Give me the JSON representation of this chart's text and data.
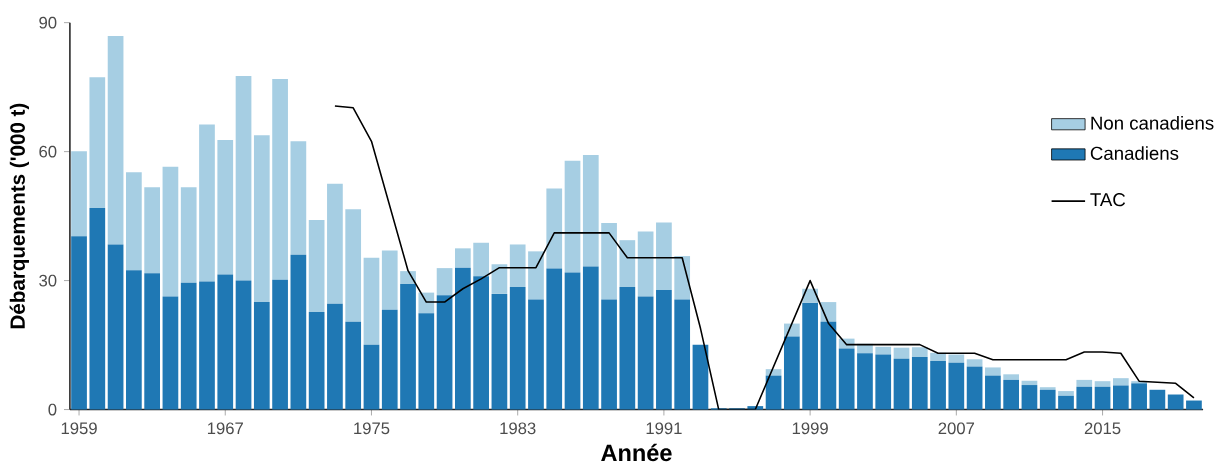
{
  "chart_data": {
    "type": "bar",
    "stacked": true,
    "xlabel": "Année",
    "ylabel": "Débarquements ('000 t)",
    "x": [
      1959,
      1960,
      1961,
      1962,
      1963,
      1964,
      1965,
      1966,
      1967,
      1968,
      1969,
      1970,
      1971,
      1972,
      1973,
      1974,
      1975,
      1976,
      1977,
      1978,
      1979,
      1980,
      1981,
      1982,
      1983,
      1984,
      1985,
      1986,
      1987,
      1988,
      1989,
      1990,
      1991,
      1992,
      1993,
      1994,
      1995,
      1996,
      1997,
      1998,
      1999,
      2000,
      2001,
      2002,
      2003,
      2004,
      2005,
      2006,
      2007,
      2008,
      2009,
      2010,
      2011,
      2012,
      2013,
      2014,
      2015,
      2016,
      2017,
      2018,
      2019,
      2020
    ],
    "series": [
      {
        "name": "Canadiens",
        "color": "#1f78b4",
        "values": [
          40.3,
          46.9,
          38.4,
          32.4,
          31.7,
          26.3,
          29.5,
          29.8,
          31.4,
          30.0,
          25.0,
          30.2,
          36.0,
          22.7,
          24.6,
          20.4,
          15.1,
          23.2,
          29.2,
          22.4,
          26.6,
          33.0,
          31.0,
          26.9,
          28.5,
          25.6,
          32.8,
          31.9,
          33.3,
          25.6,
          28.5,
          26.3,
          27.8,
          25.6,
          15.1,
          0.3,
          0.3,
          0.8,
          7.9,
          17.0,
          24.8,
          20.4,
          14.2,
          13.1,
          12.8,
          11.8,
          12.2,
          11.3,
          10.9,
          10.0,
          7.9,
          6.9,
          5.7,
          4.6,
          3.2,
          5.3,
          5.3,
          5.6,
          6.1,
          4.6,
          3.5,
          2.1
        ]
      },
      {
        "name": "Non canadiens",
        "color": "#a6cee3",
        "values": [
          19.8,
          30.4,
          48.5,
          22.8,
          20.0,
          30.2,
          22.2,
          36.5,
          31.3,
          47.6,
          38.8,
          46.7,
          26.4,
          21.4,
          27.9,
          26.2,
          20.2,
          13.8,
          3.0,
          4.8,
          6.3,
          4.5,
          7.8,
          6.9,
          9.9,
          11.2,
          18.6,
          26.0,
          25.9,
          17.8,
          10.9,
          15.1,
          15.7,
          10.1,
          0,
          0,
          0,
          0,
          1.5,
          3.0,
          3.3,
          4.6,
          2.3,
          2.2,
          1.8,
          2.6,
          2.3,
          1.9,
          1.9,
          1.7,
          1.9,
          1.3,
          1.0,
          0.6,
          1.1,
          1.6,
          1.3,
          1.7,
          0.5,
          0,
          0,
          0
        ]
      },
      {
        "name": "TAC",
        "type": "line",
        "color": "#000000",
        "x": [
          1973,
          1974,
          1975,
          1977,
          1978,
          1979,
          1980,
          1981,
          1982,
          1984,
          1985,
          1988,
          1989,
          1992,
          1993,
          1994,
          1996,
          1999,
          2000,
          2001,
          2005,
          2006,
          2008,
          2009,
          2013,
          2014,
          2015,
          2016,
          2017,
          2019,
          2020
        ],
        "values": [
          70.6,
          70.2,
          62.4,
          32.3,
          25.0,
          25.0,
          28.1,
          30.4,
          33.0,
          33.0,
          41.1,
          41.1,
          35.3,
          35.3,
          18.9,
          0,
          0,
          30.0,
          20.1,
          15.1,
          15.1,
          13.1,
          13.1,
          11.6,
          11.6,
          13.4,
          13.4,
          13.1,
          6.6,
          6.1,
          2.7
        ]
      }
    ],
    "xlim": [
      1958.5,
      2020.5
    ],
    "xticks": [
      1959,
      1967,
      1975,
      1983,
      1991,
      1999,
      2007,
      2015
    ],
    "ylim": [
      0,
      90
    ],
    "yticks": [
      0,
      30,
      60,
      90
    ],
    "grid": false,
    "legend": "top right"
  }
}
